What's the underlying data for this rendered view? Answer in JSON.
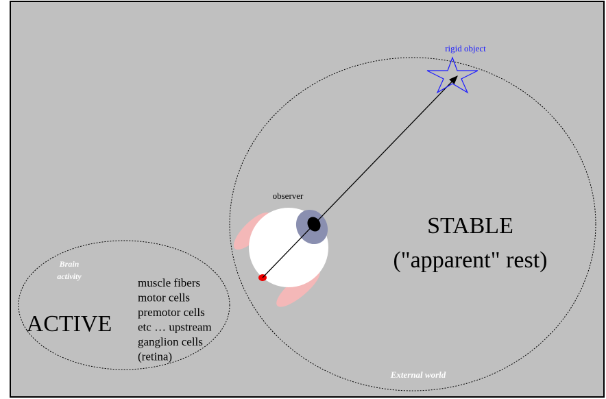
{
  "labels": {
    "rigid_object": "rigid object",
    "observer": "observer",
    "stable": "STABLE",
    "stable_sub": "(\"apparent\" rest)",
    "external_world": "External world",
    "brain_activity": [
      "Brain",
      "activity"
    ],
    "active": "ACTIVE",
    "pathway": [
      "muscle fibers",
      "motor cells",
      "premotor cells",
      "etc … upstream",
      "ganglion cells",
      "(retina)"
    ]
  }
}
